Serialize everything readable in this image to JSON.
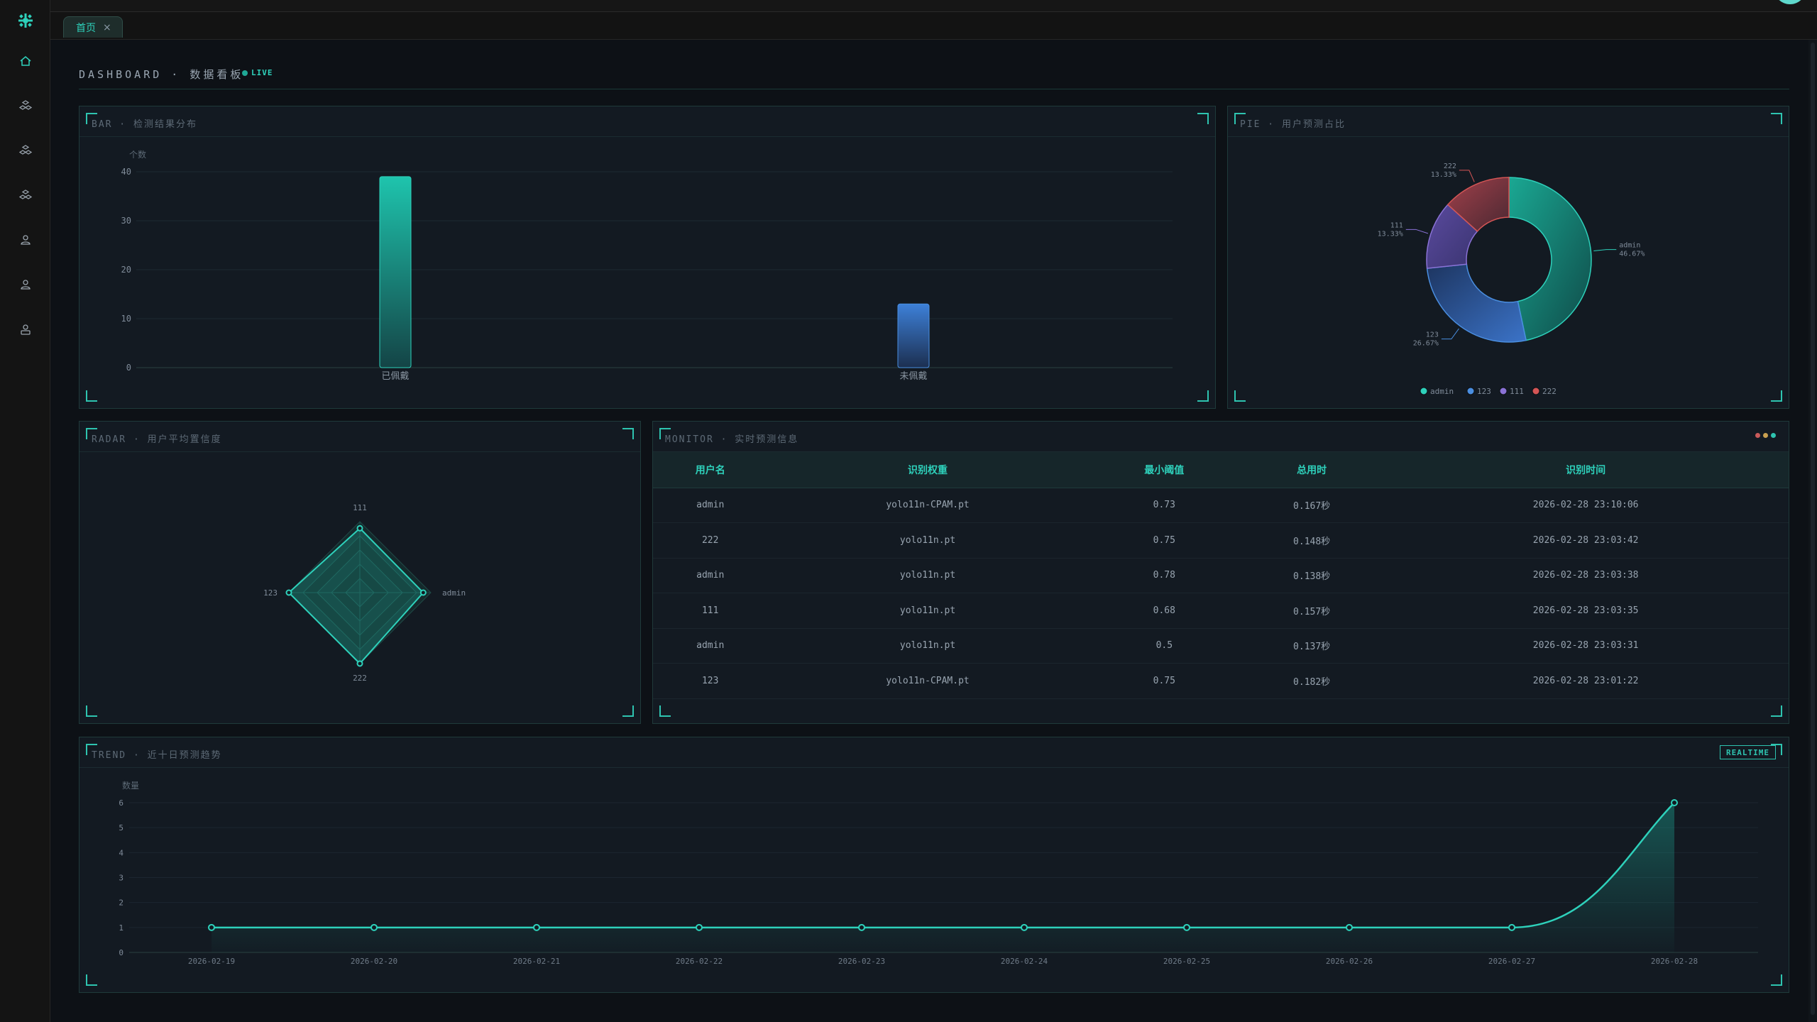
{
  "tabs": [
    {
      "label": "首页",
      "close": "×"
    }
  ],
  "header": {
    "title": "DASHBOARD · 数据看板",
    "live": "LIVE"
  },
  "colors": {
    "accent": "#2ed1bb",
    "blue": "#3d7fd6",
    "purple": "#8a72d6",
    "red": "#d45555"
  },
  "bar_panel": {
    "title": "BAR · 检测结果分布"
  },
  "pie_panel": {
    "title": "PIE · 用户预测占比"
  },
  "radar_panel": {
    "title": "RADAR · 用户平均置信度"
  },
  "monitor_panel": {
    "title": "MONITOR · 实时预测信息",
    "columns": [
      "用户名",
      "识别权重",
      "最小阈值",
      "总用时",
      "识别时间"
    ],
    "rows": [
      [
        "admin",
        "yolo11n-CPAM.pt",
        "0.73",
        "0.167秒",
        "2026-02-28 23:10:06"
      ],
      [
        "222",
        "yolo11n.pt",
        "0.75",
        "0.148秒",
        "2026-02-28 23:03:42"
      ],
      [
        "admin",
        "yolo11n.pt",
        "0.78",
        "0.138秒",
        "2026-02-28 23:03:38"
      ],
      [
        "111",
        "yolo11n.pt",
        "0.68",
        "0.157秒",
        "2026-02-28 23:03:35"
      ],
      [
        "admin",
        "yolo11n.pt",
        "0.5",
        "0.137秒",
        "2026-02-28 23:03:31"
      ],
      [
        "123",
        "yolo11n-CPAM.pt",
        "0.75",
        "0.182秒",
        "2026-02-28 23:01:22"
      ]
    ]
  },
  "trend_panel": {
    "title": "TREND · 近十日预测趋势",
    "badge": "REALTIME"
  },
  "chart_data": [
    {
      "type": "bar",
      "ylabel": "个数",
      "categories": [
        "已佩戴",
        "未佩戴"
      ],
      "values": [
        39,
        13
      ],
      "ylim": [
        0,
        40
      ],
      "yticks": [
        "0",
        "10",
        "20",
        "30",
        "40"
      ]
    },
    {
      "type": "pie",
      "slices": [
        {
          "label": "admin",
          "percent": "46.67%",
          "value": 46.67
        },
        {
          "label": "123",
          "percent": "26.67%",
          "value": 26.67
        },
        {
          "label": "111",
          "percent": "13.33%",
          "value": 13.33
        },
        {
          "label": "222",
          "percent": "13.33%",
          "value": 13.33
        }
      ],
      "legend": [
        "admin",
        "123",
        "111",
        "222"
      ]
    },
    {
      "type": "radar",
      "axes": [
        "111",
        "admin",
        "222",
        "123"
      ],
      "values": [
        0.68,
        0.67,
        0.75,
        0.75
      ],
      "max": 0.75
    },
    {
      "type": "line",
      "ylabel": "数量",
      "x": [
        "2026-02-19",
        "2026-02-20",
        "2026-02-21",
        "2026-02-22",
        "2026-02-23",
        "2026-02-24",
        "2026-02-25",
        "2026-02-26",
        "2026-02-27",
        "2026-02-28"
      ],
      "values": [
        1,
        1,
        1,
        1,
        1,
        1,
        1,
        1,
        1,
        6
      ],
      "ylim": [
        0,
        6
      ],
      "yticks": [
        "0",
        "1",
        "2",
        "3",
        "4",
        "5",
        "6"
      ]
    }
  ]
}
